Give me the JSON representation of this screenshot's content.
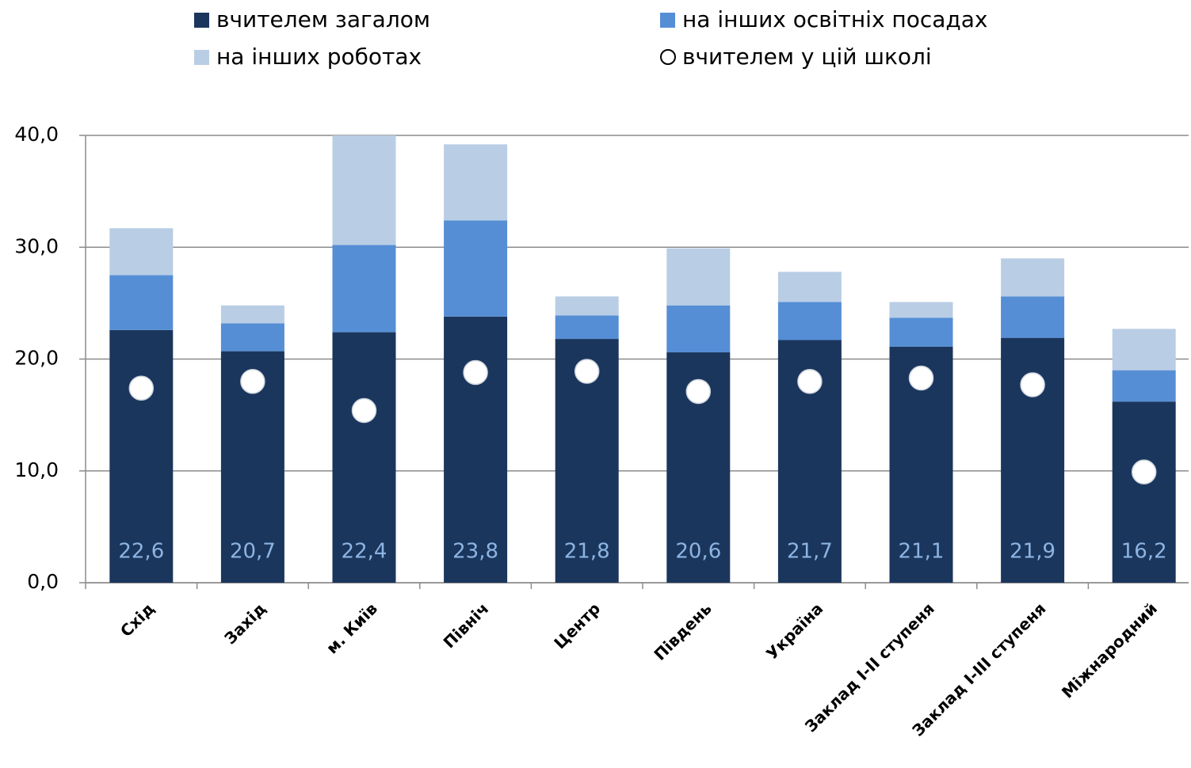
{
  "chart_data": {
    "type": "bar",
    "stacked": true,
    "categories": [
      "Схід",
      "Захід",
      "м. Київ",
      "Північ",
      "Центр",
      "Південь",
      "Україна",
      "Заклад І-ІІ ступеня",
      "Заклад І-ІІІ ступеня",
      "Міжнародний"
    ],
    "series": [
      {
        "name": "вчителем загалом",
        "color": "#1b365d",
        "values": [
          22.6,
          20.7,
          22.4,
          23.8,
          21.8,
          20.6,
          21.7,
          21.1,
          21.9,
          16.2
        ],
        "value_labels": [
          "22,6",
          "20,7",
          "22,4",
          "23,8",
          "21,8",
          "20,6",
          "21,7",
          "21,1",
          "21,9",
          "16,2"
        ]
      },
      {
        "name": "на інших освітніх посадах",
        "color": "#558ed5",
        "values": [
          4.9,
          2.5,
          7.8,
          8.6,
          2.1,
          4.2,
          3.4,
          2.6,
          3.7,
          2.8
        ]
      },
      {
        "name": "на інших роботах",
        "color": "#b9cde5",
        "values": [
          4.2,
          1.6,
          9.8,
          6.8,
          1.7,
          5.1,
          2.7,
          1.4,
          3.4,
          3.7
        ]
      },
      {
        "name": "вчителем у цій школі",
        "type": "scatter",
        "color": "#ffffff",
        "values": [
          17.4,
          18.0,
          15.4,
          18.8,
          18.9,
          17.1,
          18.0,
          18.3,
          17.7,
          9.9
        ]
      }
    ],
    "ylim": [
      0,
      40
    ],
    "yticks": [
      {
        "value": 0,
        "label": "0,0"
      },
      {
        "value": 10,
        "label": "10,0"
      },
      {
        "value": 20,
        "label": "20,0"
      },
      {
        "value": 30,
        "label": "30,0"
      },
      {
        "value": 40,
        "label": "40,0"
      }
    ],
    "grid": true,
    "legend": "top"
  }
}
